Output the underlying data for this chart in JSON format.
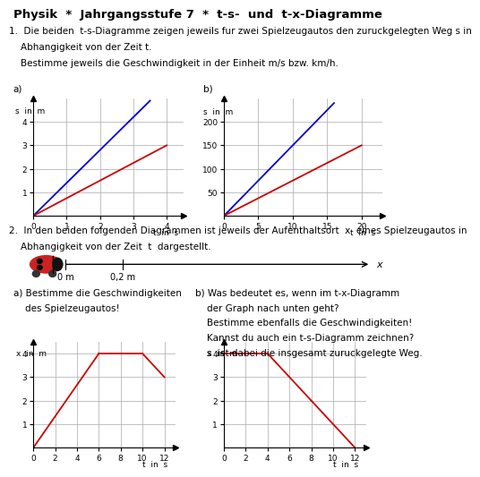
{
  "title": "Physik  *  Jahrgangsstufe 7  *  t-s-  und  t-x-Diagramme",
  "q1_line1": "1.  Die beiden  t-s-Diagramme zeigen jeweils fur zwei Spielzeugautos den zuruckgelegten Weg s in",
  "q1_line2": "    Abhangigkeit von der Zeit t.",
  "q1_line3": "    Bestimme jeweils die Geschwindigkeit in der Einheit m/s bzw. km/h.",
  "q2_line1": "2.  In den beiden folgenden Diagrammen ist jeweils der Aufenthaltsort  x  eines Spielzeugautos in",
  "q2_line2": "    Abhangigkeit von der Zeit  t  dargestellt.",
  "label_a1": "a)",
  "label_b1": "b)",
  "label_a2_line1": "a) Bestimme die Geschwindigkeiten",
  "label_a2_line2": "    des Spielzeugautos!",
  "label_b2_line1": "b) Was bedeutet es, wenn im t-x-Diagramm",
  "label_b2_line2": "    der Graph nach unten geht?",
  "label_b2_line3": "    Bestimme ebenfalls die Geschwindigkeiten!",
  "label_b2_line4": "    Kannst du auch ein t-s-Diagramm zeichnen?",
  "label_b2_line5": "    s  ist dabei die insgesamt zuruckgelegte Weg.",
  "bg_color": "#ffffff",
  "grid_color": "#aaaaaa",
  "blue_color": "#0000cc",
  "red_color": "#cc0000",
  "chart1a": {
    "xlabel": "t  in  s",
    "ylabel": "s  in  m",
    "xlim": [
      0,
      4.5
    ],
    "ylim": [
      0,
      5.0
    ],
    "xticks": [
      0,
      1,
      2,
      3,
      4
    ],
    "yticks": [
      1,
      2,
      3,
      4
    ],
    "blue_line": [
      [
        0,
        0
      ],
      [
        3.5,
        4.9
      ]
    ],
    "red_line": [
      [
        0,
        0
      ],
      [
        4,
        3
      ]
    ]
  },
  "chart1b": {
    "xlabel": "t  in  s",
    "ylabel": "s  in  m",
    "xlim": [
      0,
      23
    ],
    "ylim": [
      0,
      250
    ],
    "xticks": [
      0,
      5,
      10,
      15,
      20
    ],
    "yticks": [
      50,
      100,
      150,
      200
    ],
    "blue_line": [
      [
        0,
        0
      ],
      [
        16,
        240
      ]
    ],
    "red_line": [
      [
        0,
        0
      ],
      [
        20,
        150
      ]
    ]
  },
  "chart2a": {
    "xlabel": "t  in  s",
    "ylabel": "x  in  m",
    "xlim": [
      0,
      13
    ],
    "ylim": [
      0,
      4.5
    ],
    "xticks": [
      0,
      2,
      4,
      6,
      8,
      10,
      12
    ],
    "yticks": [
      1,
      2,
      3,
      4
    ],
    "segments": [
      {
        "x": [
          0,
          6
        ],
        "y": [
          0,
          4
        ],
        "color": "#cc0000"
      },
      {
        "x": [
          6,
          10
        ],
        "y": [
          4,
          4
        ],
        "color": "#cc0000"
      },
      {
        "x": [
          10,
          12
        ],
        "y": [
          4,
          3
        ],
        "color": "#cc0000"
      }
    ]
  },
  "chart2b": {
    "xlabel": "t  in  s",
    "ylabel": "x  in  m",
    "xlim": [
      0,
      13
    ],
    "ylim": [
      0,
      4.5
    ],
    "xticks": [
      0,
      2,
      4,
      6,
      8,
      10,
      12
    ],
    "yticks": [
      1,
      2,
      3,
      4
    ],
    "segments": [
      {
        "x": [
          0,
          4
        ],
        "y": [
          4,
          4
        ],
        "color": "#cc0000"
      },
      {
        "x": [
          4,
          8
        ],
        "y": [
          4,
          2
        ],
        "color": "#cc0000"
      },
      {
        "x": [
          8,
          12
        ],
        "y": [
          2,
          0
        ],
        "color": "#cc0000"
      }
    ]
  }
}
